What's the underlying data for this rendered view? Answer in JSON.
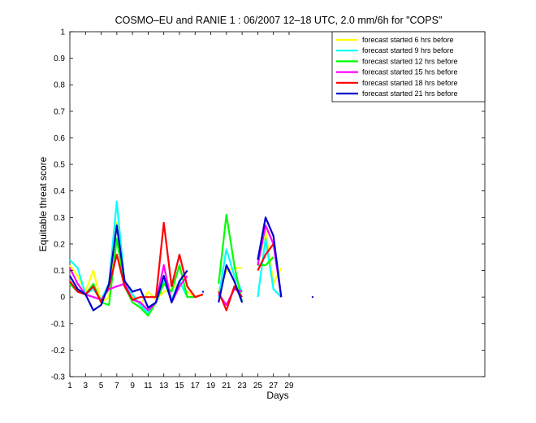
{
  "chart_data": {
    "type": "line",
    "title": "COSMO–EU and RANIE 1 : 06/2007 12–18 UTC, 2.0 mm/6h for \"COPS\"",
    "xlabel": "Days",
    "ylabel": "Equitable threat score",
    "xlim": [
      1,
      54
    ],
    "ylim": [
      -0.3,
      1
    ],
    "xticks": [
      1,
      3,
      5,
      7,
      9,
      11,
      13,
      15,
      17,
      19,
      21,
      23,
      25,
      27,
      29
    ],
    "yticks": [
      -0.3,
      -0.2,
      -0.1,
      0,
      0.1,
      0.2,
      0.3,
      0.4,
      0.5,
      0.6,
      0.7,
      0.8,
      0.9,
      1
    ],
    "grid": false,
    "legend_position": "top-right",
    "series": [
      {
        "name": "forecast started  6 hrs before",
        "color": "#ffff00",
        "values": [
          [
            1,
            0.12
          ],
          [
            2,
            0.08
          ],
          [
            3,
            0.02
          ],
          [
            4,
            0.1
          ],
          [
            5,
            -0.02
          ],
          [
            6,
            0.0
          ],
          [
            7,
            0.28
          ],
          [
            8,
            0.05
          ],
          [
            9,
            0.0
          ],
          [
            10,
            -0.03
          ],
          [
            11,
            0.02
          ],
          [
            12,
            -0.01
          ],
          [
            13,
            0.02
          ],
          [
            14,
            0.03
          ],
          [
            15,
            0.05
          ],
          [
            16,
            0.02
          ],
          [
            17,
            0.0
          ],
          [
            18,
            0.01
          ],
          null,
          [
            20,
            0.02
          ],
          [
            21,
            0.1
          ],
          [
            22,
            0.11
          ],
          [
            23,
            0.11
          ],
          null,
          [
            25,
            0.12
          ],
          [
            26,
            0.25
          ],
          [
            27,
            0.05
          ],
          [
            28,
            0.11
          ],
          null,
          [
            32,
            0.0
          ]
        ]
      },
      {
        "name": "forecast started  9 hrs before",
        "color": "#00ffff",
        "values": [
          [
            1,
            0.14
          ],
          [
            2,
            0.11
          ],
          [
            3,
            0.01
          ],
          [
            4,
            0.03
          ],
          [
            5,
            -0.01
          ],
          [
            6,
            0.05
          ],
          [
            7,
            0.36
          ],
          [
            8,
            0.05
          ],
          [
            9,
            0.01
          ],
          [
            10,
            -0.03
          ],
          [
            11,
            -0.06
          ],
          [
            12,
            -0.02
          ],
          [
            13,
            0.06
          ],
          [
            14,
            -0.01
          ],
          [
            15,
            0.06
          ],
          [
            16,
            0.0
          ],
          null,
          [
            20,
            0.0
          ],
          [
            21,
            0.18
          ],
          [
            22,
            0.08
          ],
          [
            23,
            0.02
          ],
          null,
          [
            25,
            0.0
          ],
          [
            26,
            0.22
          ],
          [
            27,
            0.03
          ],
          [
            28,
            0.0
          ]
        ]
      },
      {
        "name": "forecast started  12 hrs before",
        "color": "#00ff00",
        "values": [
          [
            1,
            0.05
          ],
          [
            2,
            0.02
          ],
          [
            3,
            0.01
          ],
          [
            4,
            0.05
          ],
          [
            5,
            -0.02
          ],
          [
            6,
            -0.03
          ],
          [
            7,
            0.22
          ],
          [
            8,
            0.04
          ],
          [
            9,
            -0.02
          ],
          [
            10,
            -0.04
          ],
          [
            11,
            -0.07
          ],
          [
            12,
            -0.02
          ],
          [
            13,
            0.05
          ],
          [
            14,
            0.02
          ],
          [
            15,
            0.12
          ],
          [
            16,
            0.0
          ],
          [
            17,
            0.0
          ],
          null,
          [
            20,
            0.05
          ],
          [
            21,
            0.31
          ],
          [
            22,
            0.12
          ],
          [
            23,
            -0.02
          ],
          null,
          [
            25,
            0.12
          ],
          [
            26,
            0.12
          ],
          [
            27,
            0.15
          ]
        ]
      },
      {
        "name": "forecast started  15 hrs before",
        "color": "#ff00ff",
        "values": [
          [
            1,
            0.11
          ],
          [
            2,
            0.05
          ],
          [
            3,
            0.01
          ],
          [
            4,
            0.0
          ],
          [
            5,
            -0.01
          ],
          [
            6,
            0.03
          ],
          [
            7,
            0.04
          ],
          [
            8,
            0.05
          ],
          [
            9,
            -0.01
          ],
          [
            10,
            -0.02
          ],
          [
            11,
            -0.05
          ],
          [
            12,
            -0.02
          ],
          [
            13,
            0.12
          ],
          [
            14,
            -0.02
          ],
          [
            15,
            0.04
          ],
          [
            16,
            0.08
          ],
          null,
          [
            20,
            0.01
          ],
          [
            21,
            -0.03
          ],
          [
            22,
            0.03
          ],
          [
            23,
            0.02
          ],
          null,
          [
            25,
            0.12
          ],
          [
            26,
            0.27
          ],
          [
            27,
            0.2
          ],
          [
            28,
            0.0
          ]
        ]
      },
      {
        "name": "forecast started  18 hrs before",
        "color": "#ff0000",
        "values": [
          [
            1,
            0.06
          ],
          [
            2,
            0.02
          ],
          [
            3,
            0.01
          ],
          [
            4,
            0.04
          ],
          [
            5,
            -0.02
          ],
          [
            6,
            0.04
          ],
          [
            7,
            0.16
          ],
          [
            8,
            0.04
          ],
          [
            9,
            -0.01
          ],
          [
            10,
            0.0
          ],
          [
            11,
            0.0
          ],
          [
            12,
            0.0
          ],
          [
            13,
            0.28
          ],
          [
            14,
            0.04
          ],
          [
            15,
            0.16
          ],
          [
            16,
            0.04
          ],
          [
            17,
            0.0
          ],
          [
            18,
            0.01
          ],
          null,
          [
            20,
            0.02
          ],
          [
            21,
            -0.05
          ],
          [
            22,
            0.04
          ],
          [
            23,
            0.0
          ],
          null,
          [
            25,
            0.1
          ],
          [
            26,
            0.16
          ],
          [
            27,
            0.2
          ]
        ]
      },
      {
        "name": "forecast started  21 hrs before",
        "color": "#0000cc",
        "values": [
          [
            1,
            0.08
          ],
          [
            2,
            0.03
          ],
          [
            3,
            0.01
          ],
          [
            4,
            -0.05
          ],
          [
            5,
            -0.03
          ],
          [
            6,
            0.05
          ],
          [
            7,
            0.27
          ],
          [
            8,
            0.06
          ],
          [
            9,
            0.02
          ],
          [
            10,
            0.03
          ],
          [
            11,
            -0.04
          ],
          [
            12,
            -0.02
          ],
          [
            13,
            0.08
          ],
          [
            14,
            -0.02
          ],
          [
            15,
            0.06
          ],
          [
            16,
            0.1
          ],
          null,
          [
            18,
            0.02
          ],
          null,
          [
            20,
            -0.02
          ],
          [
            21,
            0.12
          ],
          [
            22,
            0.06
          ],
          [
            23,
            -0.02
          ],
          null,
          [
            25,
            0.14
          ],
          [
            26,
            0.3
          ],
          [
            27,
            0.23
          ],
          [
            28,
            0.0
          ],
          null,
          [
            32,
            0.0
          ]
        ]
      }
    ]
  }
}
